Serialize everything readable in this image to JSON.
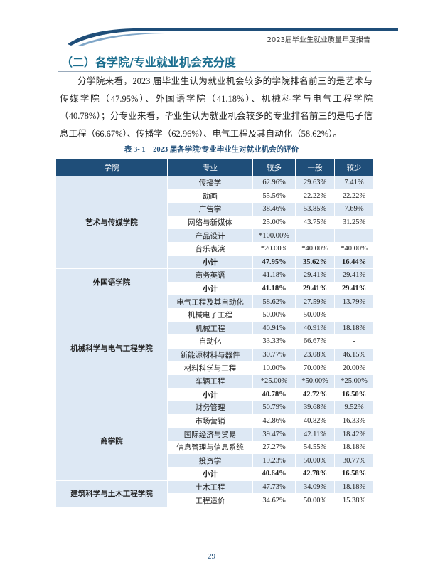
{
  "header": {
    "title": "2023届毕业生就业质量年度报告"
  },
  "section": {
    "title": "（二）各学院/专业就业机会充分度"
  },
  "paragraph": "分学院来看，2023 届毕业生认为就业机会较多的学院排名前三的是艺术与传媒学院（47.95%）、外国语学院（41.18%）、机械科学与电气工程学院（40.78%）；分专业来看，毕业生认为就业机会较多的专业排名前三的是电子信息工程（66.67%）、传播学（62.96%）、电气工程及其自动化（58.62%）。",
  "table": {
    "caption": "表 3- 1　2023 届各学院/专业毕业生对就业机会的评价",
    "header": [
      "学院",
      "专业",
      "较多",
      "一般",
      "较少"
    ],
    "groups": [
      {
        "college": "艺术与传媒学院",
        "rows": [
          [
            "传播学",
            "62.96%",
            "29.63%",
            "7.41%"
          ],
          [
            "动画",
            "55.56%",
            "22.22%",
            "22.22%"
          ],
          [
            "广告学",
            "38.46%",
            "53.85%",
            "7.69%"
          ],
          [
            "网络与新媒体",
            "25.00%",
            "43.75%",
            "31.25%"
          ],
          [
            "产品设计",
            "*100.00%",
            "-",
            "-"
          ],
          [
            "音乐表演",
            "*20.00%",
            "*40.00%",
            "*40.00%"
          ],
          [
            "小计",
            "47.95%",
            "35.62%",
            "16.44%"
          ]
        ]
      },
      {
        "college": "外国语学院",
        "rows": [
          [
            "商务英语",
            "41.18%",
            "29.41%",
            "29.41%"
          ],
          [
            "小计",
            "41.18%",
            "29.41%",
            "29.41%"
          ]
        ]
      },
      {
        "college": "机械科学与电气工程学院",
        "rows": [
          [
            "电气工程及其自动化",
            "58.62%",
            "27.59%",
            "13.79%"
          ],
          [
            "机械电子工程",
            "50.00%",
            "50.00%",
            "-"
          ],
          [
            "机械工程",
            "40.91%",
            "40.91%",
            "18.18%"
          ],
          [
            "自动化",
            "33.33%",
            "66.67%",
            "-"
          ],
          [
            "新能源材料与器件",
            "30.77%",
            "23.08%",
            "46.15%"
          ],
          [
            "材料科学与工程",
            "10.00%",
            "70.00%",
            "20.00%"
          ],
          [
            "车辆工程",
            "*25.00%",
            "*50.00%",
            "*25.00%"
          ],
          [
            "小计",
            "40.78%",
            "42.72%",
            "16.50%"
          ]
        ]
      },
      {
        "college": "商学院",
        "rows": [
          [
            "财务管理",
            "50.79%",
            "39.68%",
            "9.52%"
          ],
          [
            "市场营销",
            "42.86%",
            "40.82%",
            "16.33%"
          ],
          [
            "国际经济与贸易",
            "39.47%",
            "42.11%",
            "18.42%"
          ],
          [
            "信息管理与信息系统",
            "27.27%",
            "54.55%",
            "18.18%"
          ],
          [
            "投资学",
            "19.23%",
            "50.00%",
            "30.77%"
          ],
          [
            "小计",
            "40.64%",
            "42.78%",
            "16.58%"
          ]
        ]
      },
      {
        "college": "建筑科学与土木工程学院",
        "rows": [
          [
            "土木工程",
            "47.73%",
            "34.09%",
            "18.18%"
          ],
          [
            "工程造价",
            "34.62%",
            "50.00%",
            "15.38%"
          ]
        ]
      }
    ]
  },
  "page_number": "29"
}
